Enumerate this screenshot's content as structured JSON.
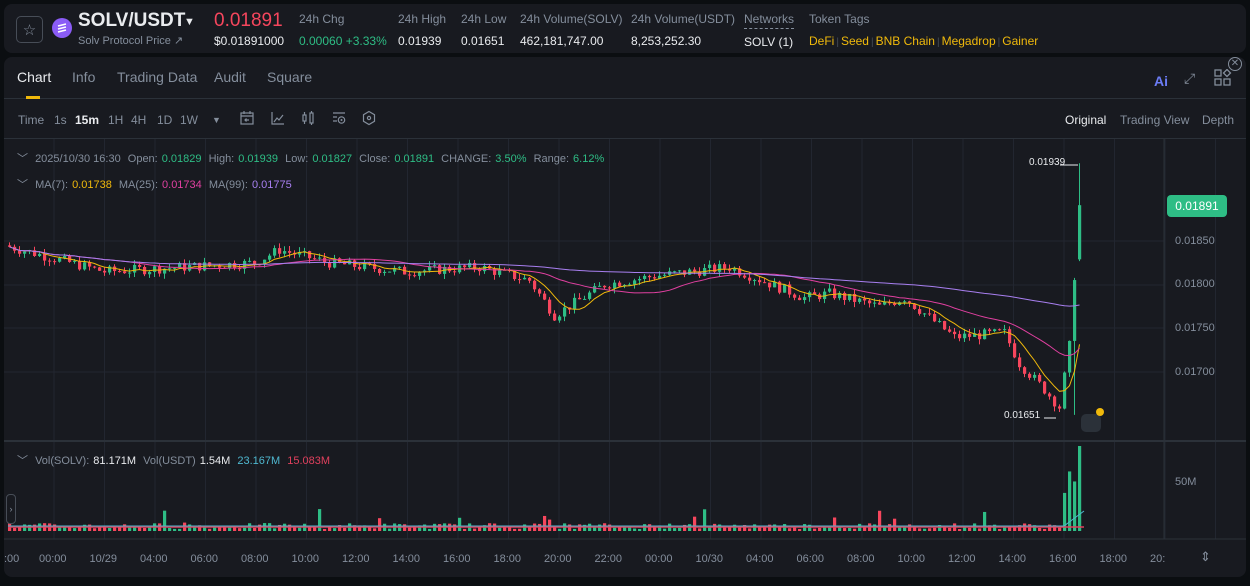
{
  "header": {
    "pair": "SOLV/USDT",
    "subtitle": "Solv Protocol Price ↗",
    "last_price": "0.01891",
    "last_price_usd": "$0.01891000",
    "stats": [
      {
        "label": "24h Chg",
        "value": "0.00060 +3.33%",
        "color": "green"
      },
      {
        "label": "24h High",
        "value": "0.01939"
      },
      {
        "label": "24h Low",
        "value": "0.01651"
      },
      {
        "label": "24h Volume(SOLV)",
        "value": "462,181,747.00"
      },
      {
        "label": "24h Volume(USDT)",
        "value": "8,253,252.30"
      }
    ],
    "networks_label": "Networks",
    "networks_value": "SOLV (1)",
    "tags_label": "Token Tags",
    "tags": [
      "DeFi",
      "Seed",
      "BNB Chain",
      "Megadrop",
      "Gainer"
    ]
  },
  "tabs": [
    "Chart",
    "Info",
    "Trading Data",
    "Audit",
    "Square"
  ],
  "active_tab": "Chart",
  "ai_label": "Ai",
  "toolbar": {
    "intervals": [
      "Time",
      "1s",
      "15m",
      "1H",
      "4H",
      "1D",
      "1W"
    ],
    "active_interval": "15m",
    "views": [
      "Original",
      "Trading View",
      "Depth"
    ],
    "active_view": "Original"
  },
  "legend": {
    "datetime": "2025/10/30 16:30",
    "open_label": "Open:",
    "open": "0.01829",
    "high_label": "High:",
    "high": "0.01939",
    "low_label": "Low:",
    "low": "0.01827",
    "close_label": "Close:",
    "close": "0.01891",
    "change_label": "CHANGE:",
    "change": "3.50%",
    "range_label": "Range:",
    "range": "6.12%",
    "ma7_label": "MA(7):",
    "ma7": "0.01738",
    "ma25_label": "MA(25):",
    "ma25": "0.01734",
    "ma99_label": "MA(99):",
    "ma99": "0.01775"
  },
  "volume_legend": {
    "vol_solv_label": "Vol(SOLV):",
    "vol_solv": "81.171M",
    "vol_usdt_label": "Vol(USDT)",
    "vol_usdt": "1.54M",
    "ma1": "23.167M",
    "ma2": "15.083M"
  },
  "price_axis": [
    "0.01850",
    "0.01800",
    "0.01750",
    "0.01700"
  ],
  "current_price_tag": "0.01891",
  "high_marker": "0.01939",
  "low_marker": "0.01651",
  "volume_axis": [
    "50M"
  ],
  "time_axis": [
    ":00",
    "00:00",
    "10/29",
    "04:00",
    "06:00",
    "08:00",
    "10:00",
    "12:00",
    "14:00",
    "16:00",
    "18:00",
    "20:00",
    "22:00",
    "00:00",
    "10/30",
    "04:00",
    "06:00",
    "08:00",
    "10:00",
    "12:00",
    "14:00",
    "16:00",
    "18:00",
    "20:"
  ],
  "colors": {
    "up": "#2ebd85",
    "down": "#f6465d",
    "ma7": "#f0b90b",
    "ma25": "#e040a0",
    "ma99": "#a87ff0",
    "accent": "#f0b90b"
  }
}
